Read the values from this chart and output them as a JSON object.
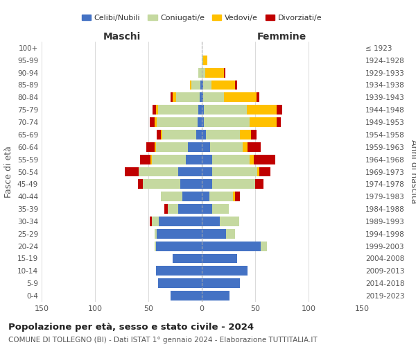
{
  "age_groups": [
    "0-4",
    "5-9",
    "10-14",
    "15-19",
    "20-24",
    "25-29",
    "30-34",
    "35-39",
    "40-44",
    "45-49",
    "50-54",
    "55-59",
    "60-64",
    "65-69",
    "70-74",
    "75-79",
    "80-84",
    "85-89",
    "90-94",
    "95-99",
    "100+"
  ],
  "birth_years": [
    "2019-2023",
    "2014-2018",
    "2009-2013",
    "2004-2008",
    "1999-2003",
    "1994-1998",
    "1989-1993",
    "1984-1988",
    "1979-1983",
    "1974-1978",
    "1969-1973",
    "1964-1968",
    "1959-1963",
    "1954-1958",
    "1949-1953",
    "1944-1948",
    "1939-1943",
    "1934-1938",
    "1929-1933",
    "1924-1928",
    "≤ 1923"
  ],
  "colors": {
    "celibi": "#4472c4",
    "coniugati": "#c5d9a0",
    "vedovi": "#ffc000",
    "divorziati": "#c00000"
  },
  "maschi": {
    "celibi": [
      29,
      41,
      43,
      27,
      43,
      42,
      40,
      22,
      18,
      20,
      22,
      15,
      13,
      5,
      4,
      3,
      2,
      1,
      0,
      0,
      0
    ],
    "coniugati": [
      0,
      0,
      0,
      0,
      1,
      2,
      7,
      10,
      20,
      35,
      37,
      32,
      30,
      32,
      38,
      38,
      22,
      9,
      3,
      0,
      0
    ],
    "vedovi": [
      0,
      0,
      0,
      0,
      0,
      0,
      0,
      0,
      0,
      0,
      0,
      1,
      1,
      1,
      2,
      2,
      3,
      1,
      0,
      0,
      0
    ],
    "divorziati": [
      0,
      0,
      0,
      0,
      0,
      0,
      2,
      3,
      0,
      5,
      13,
      10,
      8,
      4,
      5,
      3,
      2,
      0,
      0,
      0,
      0
    ]
  },
  "femmine": {
    "celibi": [
      26,
      36,
      43,
      33,
      55,
      23,
      17,
      10,
      7,
      10,
      10,
      10,
      8,
      4,
      2,
      2,
      1,
      1,
      0,
      0,
      0
    ],
    "coniugati": [
      0,
      0,
      0,
      0,
      6,
      8,
      18,
      15,
      22,
      40,
      42,
      35,
      30,
      32,
      43,
      40,
      20,
      8,
      3,
      1,
      0
    ],
    "vedovi": [
      0,
      0,
      0,
      0,
      0,
      0,
      0,
      0,
      2,
      0,
      2,
      4,
      5,
      10,
      25,
      28,
      30,
      22,
      18,
      4,
      0
    ],
    "divorziati": [
      0,
      0,
      0,
      0,
      0,
      0,
      0,
      0,
      5,
      8,
      10,
      20,
      12,
      5,
      4,
      5,
      3,
      2,
      1,
      0,
      0
    ]
  },
  "xlim": 150,
  "title": "Popolazione per età, sesso e stato civile - 2024",
  "subtitle": "COMUNE DI TOLLEGNO (BI) - Dati ISTAT 1° gennaio 2024 - Elaborazione TUTTITALIA.IT",
  "xlabel_left": "Maschi",
  "xlabel_right": "Femmine",
  "ylabel_left": "Fasce di età",
  "ylabel_right": "Anni di nascita",
  "legend_labels": [
    "Celibi/Nubili",
    "Coniugati/e",
    "Vedovi/e",
    "Divorziati/e"
  ],
  "background_color": "#ffffff"
}
